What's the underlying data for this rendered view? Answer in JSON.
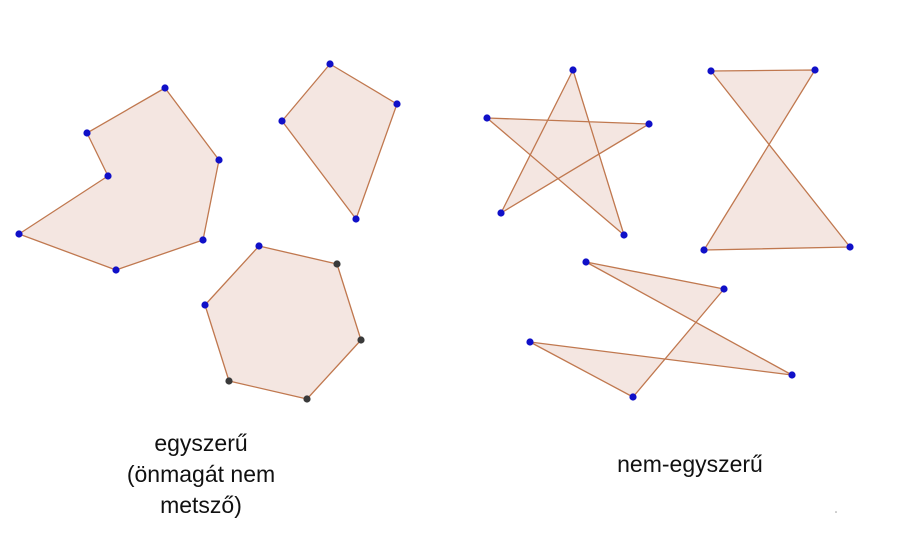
{
  "labels": {
    "simple": {
      "line1": "egyszerű",
      "line2": "(önmagát nem",
      "line3": "metsző)"
    },
    "nonsimple": "nem-egyszerű"
  },
  "colors": {
    "fill": "#f4e6e1",
    "stroke": "#c0784f",
    "point_blue": "#1010c8",
    "point_dark": "#3a3a3a"
  }
}
